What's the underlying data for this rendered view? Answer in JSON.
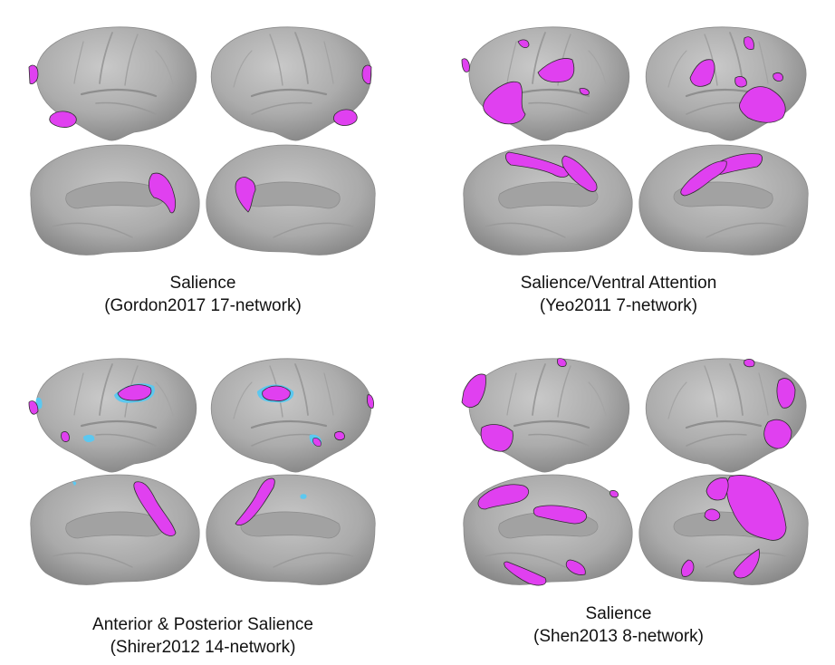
{
  "colors": {
    "background": "#ffffff",
    "cortex_surface": "#a9a9a9",
    "network_fill": "#e040f0",
    "network_outline": "#2e2e2e",
    "secondary_fill": "#5cc8f0"
  },
  "panels": [
    {
      "id": "gordon",
      "title": "Salience",
      "subtitle": "(Gordon2017 17-network)"
    },
    {
      "id": "yeo",
      "title": "Salience/Ventral Attention",
      "subtitle": "(Yeo2011 7-network)"
    },
    {
      "id": "shirer",
      "title": "Anterior & Posterior Salience",
      "subtitle": "(Shirer2012 14-network)"
    },
    {
      "id": "shen",
      "title": "Salience",
      "subtitle": "(Shen2013 8-network)"
    }
  ]
}
